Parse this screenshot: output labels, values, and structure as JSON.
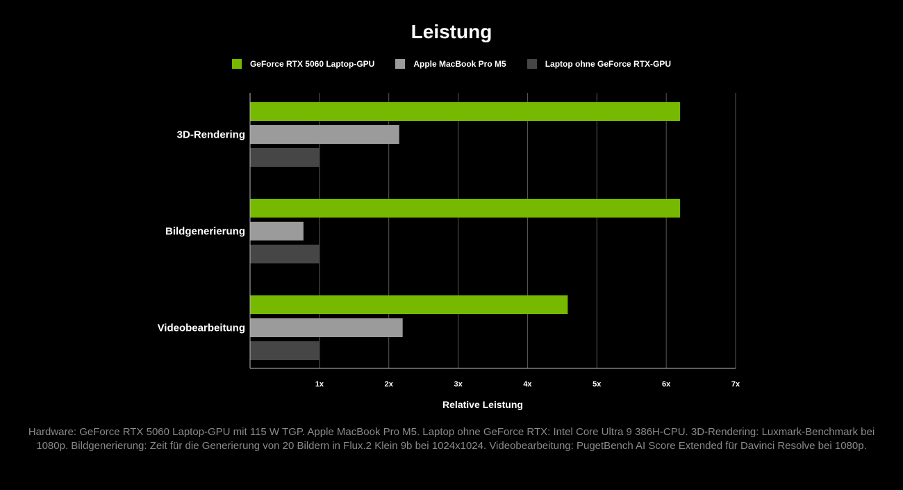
{
  "colors": {
    "background": "#000000",
    "grid": "#5a5a5a",
    "axis": "#bdbdbd",
    "text": "#ffffff",
    "footnote": "#8a8a8a"
  },
  "chart_data": {
    "type": "bar",
    "orientation": "horizontal",
    "title": "Leistung",
    "xlabel": "Relative Leistung",
    "ylabel": "",
    "xlim": [
      0,
      7
    ],
    "xticks": [
      1,
      2,
      3,
      4,
      5,
      6,
      7
    ],
    "xtick_labels": [
      "1x",
      "2x",
      "3x",
      "4x",
      "5x",
      "6x",
      "7x"
    ],
    "grid": true,
    "legend_position": "top-center",
    "categories": [
      "3D-Rendering",
      "Bildgenerierung",
      "Videobearbeitung"
    ],
    "series": [
      {
        "name": "GeForce RTX 5060 Laptop-GPU",
        "color": "#76b900",
        "values": [
          6.2,
          6.2,
          4.58
        ]
      },
      {
        "name": "Apple MacBook Pro M5",
        "color": "#9b9b9b",
        "values": [
          2.15,
          0.77,
          2.2
        ]
      },
      {
        "name": "Laptop ohne GeForce RTX-GPU",
        "color": "#464646",
        "values": [
          1.0,
          1.0,
          1.0
        ]
      }
    ]
  },
  "footnote": "Hardware: GeForce RTX 5060 Laptop-GPU mit 115 W TGP. Apple MacBook Pro M5. Laptop ohne GeForce RTX: Intel Core Ultra 9 386H-CPU. 3D-Rendering: Luxmark-Benchmark bei 1080p. Bildgenerierung: Zeit für die Generierung von 20 Bildern in Flux.2 Klein 9b bei 1024x1024. Videobearbeitung: PugetBench AI Score Extended für Davinci Resolve bei 1080p."
}
